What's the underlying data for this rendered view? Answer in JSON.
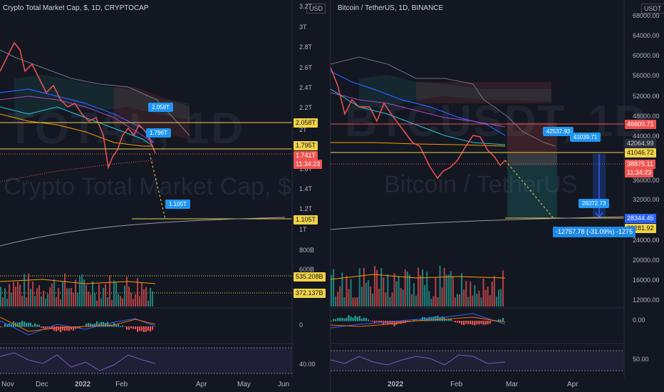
{
  "left_chart": {
    "title": "Crypto Total Market Cap, $, 1D, CRYPTOCAP",
    "watermark_main": "TOTAL, 1D",
    "watermark_sub": "Crypto Total Market Cap, $",
    "currency": "USD",
    "y_axis_labels": [
      "3.2T",
      "3T",
      "2.8T",
      "2.6T",
      "2.4T",
      "2.2T",
      "2T",
      "1.6T",
      "1.4T",
      "1.2T",
      "1T",
      "800B",
      "600B"
    ],
    "price_tags": {
      "level_high": "2.058T",
      "level_mid": "1.795T",
      "current": "1.741T",
      "countdown": "11:34:23",
      "target": "1.105T",
      "volume_ma": "535.208B",
      "volume": "372.137B"
    },
    "bubbles": [
      "2.058T",
      "1.796T",
      "1.105T"
    ],
    "macd_axis": "0",
    "rsi_axis": "40.00",
    "x_axis_labels": [
      "Nov",
      "Dec",
      "2022",
      "Feb",
      "Apr",
      "May",
      "Jun"
    ]
  },
  "right_chart": {
    "title": "Bitcoin / TetherUS, 1D, BINANCE",
    "watermark_main": "BTCUSDT, 1D",
    "watermark_sub": "Bitcoin / TetherUS",
    "currency": "USDT",
    "y_axis_labels": [
      "68000.00",
      "64000.00",
      "60000.00",
      "56000.00",
      "52000.00",
      "48000.00",
      "44000.00",
      "36000.00",
      "32000.00",
      "24000.00",
      "20000.00",
      "16000.00",
      "12000.00"
    ],
    "price_tags": {
      "top_level": "46600.71",
      "upper_level": "42064.99",
      "level": "41046.72",
      "current": "38875.11",
      "countdown": "11:34:23",
      "target": "28344.45",
      "low_level": "28281.92"
    },
    "bubbles": [
      "42537.93",
      "41039.71",
      "28372.73"
    ],
    "measure_label": "-12757.78 (-31.09%) -1275",
    "macd_axis": "0.00",
    "rsi_axis": "50.00",
    "x_axis_labels": [
      "2022",
      "Feb",
      "Mar",
      "Apr"
    ]
  },
  "colors": {
    "background": "#131722",
    "up": "#26a69a",
    "down": "#ef5350",
    "accent_yellow": "#f0d347",
    "bubble_blue": "#2196f3"
  }
}
